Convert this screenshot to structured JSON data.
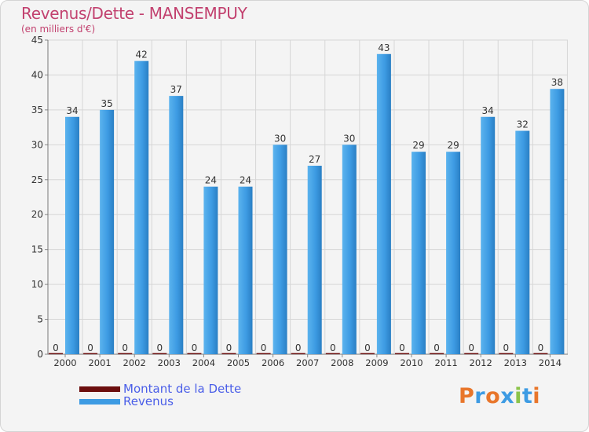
{
  "title": "Revenus/Dette - MANSEMPUY",
  "subtitle": "(en milliers d'€)",
  "legend": [
    {
      "label": "Montant de la Dette",
      "color": "#6b0e0e"
    },
    {
      "label": "Revenus",
      "color": "#3d9be3"
    }
  ],
  "logo_text": "Proxiti",
  "logo_colors": [
    "#e8762b",
    "#3d9be3",
    "#e8762b",
    "#3d9be3",
    "#8bc34a",
    "#3d9be3",
    "#e8762b"
  ],
  "chart_data": {
    "type": "bar",
    "categories": [
      "2000",
      "2001",
      "2002",
      "2003",
      "2004",
      "2005",
      "2006",
      "2007",
      "2008",
      "2009",
      "2010",
      "2011",
      "2012",
      "2013",
      "2014"
    ],
    "series": [
      {
        "name": "Montant de la Dette",
        "values": [
          0,
          0,
          0,
          0,
          0,
          0,
          0,
          0,
          0,
          0,
          0,
          0,
          0,
          0,
          0
        ],
        "color": "#6b0e0e"
      },
      {
        "name": "Revenus",
        "values": [
          34,
          35,
          42,
          37,
          24,
          24,
          30,
          27,
          30,
          43,
          29,
          29,
          34,
          32,
          38
        ],
        "color": "#3d9be3"
      }
    ],
    "yticks": [
      0,
      5,
      10,
      15,
      20,
      25,
      30,
      35,
      40,
      45
    ],
    "ylim": [
      0,
      45
    ],
    "grid": true
  }
}
